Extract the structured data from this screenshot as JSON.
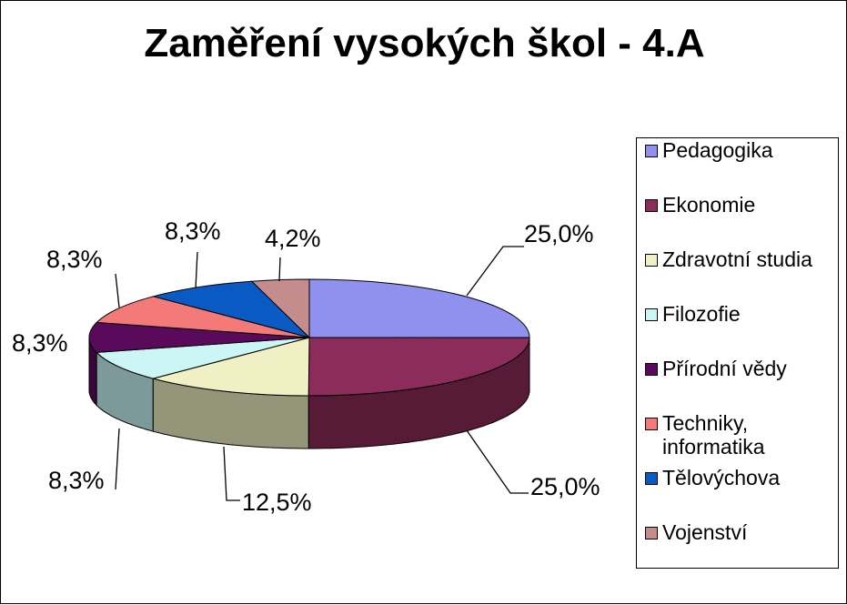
{
  "chart_data": {
    "type": "pie",
    "title": "Zaměření vysokých škol - 4.A",
    "legend_position": "right",
    "slices": [
      {
        "name": "Pedagogika",
        "value": 25.0,
        "label": "25,0%",
        "color": "#9090ee"
      },
      {
        "name": "Ekonomie",
        "value": 25.0,
        "label": "25,0%",
        "color": "#8c2c5a"
      },
      {
        "name": "Zdravotní studia",
        "value": 12.5,
        "label": "12,5%",
        "color": "#f0f0c4"
      },
      {
        "name": "Filozofie",
        "value": 8.3,
        "label": "8,3%",
        "color": "#ccf6f6"
      },
      {
        "name": "Přírodní vědy",
        "value": 8.3,
        "label": "8,3%",
        "color": "#5a0a5a"
      },
      {
        "name": "Techniky, informatika",
        "value": 8.3,
        "label": "8,3%",
        "color": "#f47a7a"
      },
      {
        "name": "Tělovýchova",
        "value": 8.3,
        "label": "8,3%",
        "color": "#0a5ac4"
      },
      {
        "name": "Vojenství",
        "value": 4.2,
        "label": "4,2%",
        "color": "#c48c8c"
      }
    ]
  }
}
